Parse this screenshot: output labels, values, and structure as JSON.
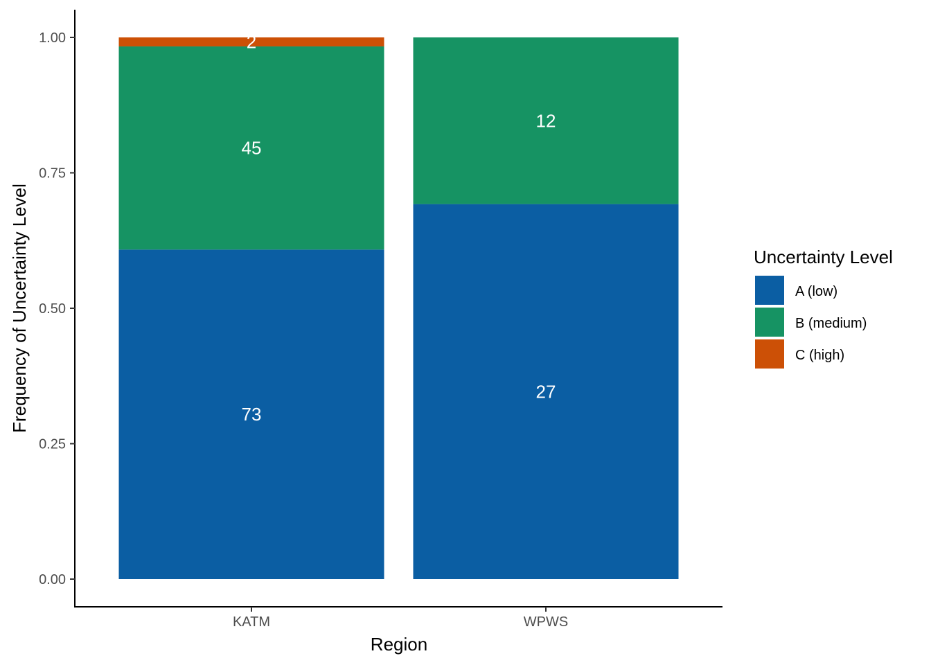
{
  "chart_data": {
    "type": "bar",
    "stacked": true,
    "normalized": true,
    "title": "",
    "xlabel": "Region",
    "ylabel": "Frequency of Uncertainty Level",
    "ylim": [
      0,
      1
    ],
    "yticks": [
      "0.00",
      "0.25",
      "0.50",
      "0.75",
      "1.00"
    ],
    "categories": [
      "KATM",
      "WPWS"
    ],
    "legend": {
      "title": "Uncertainty Level",
      "position": "right"
    },
    "series": [
      {
        "name": "A (low)",
        "color": "#0b5ea3",
        "counts": [
          73,
          27
        ],
        "labels": [
          "73",
          "27"
        ]
      },
      {
        "name": "B (medium)",
        "color": "#169363",
        "counts": [
          45,
          12
        ],
        "labels": [
          "45",
          "12"
        ]
      },
      {
        "name": "C (high)",
        "color": "#cc5006",
        "counts": [
          2,
          0
        ],
        "labels": [
          "2",
          ""
        ]
      }
    ],
    "grid": false
  }
}
